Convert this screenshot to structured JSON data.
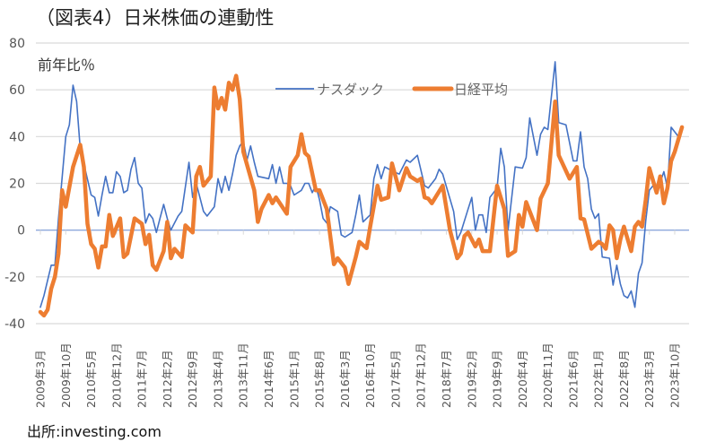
{
  "chart_data": {
    "type": "line",
    "title": "（図表4）日米株価の連動性",
    "ylabel": "前年比％",
    "source": "出所:investing.com",
    "ylim": [
      -40,
      80
    ],
    "yticks": [
      80,
      60,
      40,
      20,
      0,
      -20,
      -40
    ],
    "ytick_labels": [
      "80",
      "60",
      "40",
      "20",
      "0",
      "-20",
      "-40"
    ],
    "x_unit": "months since 2009年3月",
    "xlim": [
      0,
      177
    ],
    "x_tick_step_months": 7,
    "x_tick_labels": [
      "2009年3月",
      "2009年10月",
      "2010年5月",
      "2010年12月",
      "2011年7月",
      "2012年2月",
      "2012年9月",
      "2013年4月",
      "2013年11月",
      "2014年6月",
      "2015年1月",
      "2015年8月",
      "2016年3月",
      "2016年10月",
      "2017年5月",
      "2017年12月",
      "2018年7月",
      "2019年2月",
      "2019年9月",
      "2020年4月",
      "2020年11月",
      "2021年6月",
      "2022年1月",
      "2022年8月",
      "2023年3月",
      "2023年10月"
    ],
    "grid": true,
    "legend_position": "top-center",
    "colors": {
      "nasdaq": "#4472C4",
      "nikkei": "#ED7D31",
      "grid": "#D9D9D9",
      "axis": "#8EA9DB"
    },
    "series": [
      {
        "name": "ナスダック",
        "key": "nasdaq",
        "points": [
          [
            0,
            -33
          ],
          [
            1,
            -28
          ],
          [
            3,
            -15
          ],
          [
            4,
            -15
          ],
          [
            5,
            5
          ],
          [
            7,
            40
          ],
          [
            8,
            45
          ],
          [
            9,
            62
          ],
          [
            10,
            55
          ],
          [
            11,
            35
          ],
          [
            14,
            15
          ],
          [
            15,
            14
          ],
          [
            16,
            6
          ],
          [
            17,
            15
          ],
          [
            18,
            23
          ],
          [
            19,
            16
          ],
          [
            20,
            16
          ],
          [
            21,
            25
          ],
          [
            22,
            23
          ],
          [
            23,
            16
          ],
          [
            24,
            17
          ],
          [
            25,
            26
          ],
          [
            26,
            31
          ],
          [
            27,
            20
          ],
          [
            28,
            18
          ],
          [
            29,
            3
          ],
          [
            30,
            7
          ],
          [
            31,
            5
          ],
          [
            32,
            -1
          ],
          [
            33,
            5
          ],
          [
            34,
            11
          ],
          [
            35,
            5
          ],
          [
            36,
            0
          ],
          [
            38,
            6
          ],
          [
            39,
            8
          ],
          [
            41,
            29
          ],
          [
            42,
            14
          ],
          [
            43,
            20
          ],
          [
            44,
            14
          ],
          [
            45,
            8
          ],
          [
            46,
            6
          ],
          [
            48,
            10
          ],
          [
            49,
            22
          ],
          [
            50,
            16
          ],
          [
            51,
            23
          ],
          [
            52,
            17
          ],
          [
            53,
            24
          ],
          [
            54,
            32
          ],
          [
            55,
            36
          ],
          [
            56,
            38
          ],
          [
            57,
            30
          ],
          [
            58,
            36
          ],
          [
            59,
            29
          ],
          [
            60,
            23
          ],
          [
            63,
            22
          ],
          [
            64,
            28
          ],
          [
            65,
            20
          ],
          [
            66,
            27
          ],
          [
            67,
            20
          ],
          [
            68,
            20
          ],
          [
            69,
            19
          ],
          [
            70,
            15
          ],
          [
            72,
            17
          ],
          [
            73,
            20
          ],
          [
            74,
            20
          ],
          [
            75,
            16
          ],
          [
            76,
            19
          ],
          [
            77,
            13
          ],
          [
            78,
            5
          ],
          [
            79,
            3
          ],
          [
            80,
            10
          ],
          [
            82,
            8
          ],
          [
            83,
            -2
          ],
          [
            84,
            -3
          ],
          [
            86,
            -1
          ],
          [
            87,
            6.5
          ],
          [
            88,
            15
          ],
          [
            89,
            3.5
          ],
          [
            91,
            6.5
          ],
          [
            92,
            22
          ],
          [
            93,
            28
          ],
          [
            94,
            22
          ],
          [
            95,
            27
          ],
          [
            98,
            24.6
          ],
          [
            99,
            24
          ],
          [
            101,
            30
          ],
          [
            102,
            29
          ],
          [
            104,
            32
          ],
          [
            106,
            19
          ],
          [
            107,
            18
          ],
          [
            109,
            22
          ],
          [
            110,
            26
          ],
          [
            111,
            24
          ],
          [
            114,
            8
          ],
          [
            115,
            -4
          ],
          [
            116,
            -1
          ],
          [
            118,
            9
          ],
          [
            119,
            14
          ],
          [
            120,
            0
          ],
          [
            121,
            6.5
          ],
          [
            122,
            6.5
          ],
          [
            123,
            -1
          ],
          [
            124,
            14
          ],
          [
            126,
            18
          ],
          [
            127,
            35
          ],
          [
            128,
            27
          ],
          [
            129,
            0
          ],
          [
            131,
            27
          ],
          [
            133,
            26.5
          ],
          [
            134,
            31
          ],
          [
            135,
            48
          ],
          [
            137,
            32
          ],
          [
            138,
            41
          ],
          [
            139,
            44
          ],
          [
            140,
            43
          ],
          [
            142,
            72
          ],
          [
            143,
            46
          ],
          [
            145,
            45
          ],
          [
            147,
            29.6
          ],
          [
            148,
            29.6
          ],
          [
            149,
            42
          ],
          [
            150,
            27
          ],
          [
            151,
            22
          ],
          [
            152,
            9
          ],
          [
            153,
            5
          ],
          [
            154,
            7
          ],
          [
            155,
            -11.5
          ],
          [
            157,
            -12
          ],
          [
            158,
            -23.5
          ],
          [
            159,
            -15
          ],
          [
            160,
            -23
          ],
          [
            161,
            -28
          ],
          [
            162,
            -29
          ],
          [
            163,
            -26
          ],
          [
            164,
            -33
          ],
          [
            165,
            -18.5
          ],
          [
            166,
            -14
          ],
          [
            167,
            4
          ],
          [
            168,
            17
          ],
          [
            169,
            19
          ],
          [
            170,
            16
          ],
          [
            172,
            25
          ],
          [
            173,
            18
          ],
          [
            174,
            44
          ],
          [
            176,
            40
          ]
        ]
      },
      {
        "name": "日経平均",
        "key": "nikkei",
        "points": [
          [
            0,
            -35
          ],
          [
            1,
            -36.5
          ],
          [
            2,
            -34
          ],
          [
            3,
            -25
          ],
          [
            4,
            -20
          ],
          [
            5,
            -10
          ],
          [
            6,
            17
          ],
          [
            7,
            10
          ],
          [
            9,
            27
          ],
          [
            11,
            36.5
          ],
          [
            12,
            27
          ],
          [
            13,
            2.7
          ],
          [
            14,
            -6
          ],
          [
            15,
            -8
          ],
          [
            16,
            -16
          ],
          [
            17,
            -7
          ],
          [
            18,
            -7
          ],
          [
            19,
            6.5
          ],
          [
            20,
            -2.5
          ],
          [
            22,
            5
          ],
          [
            23,
            -11.5
          ],
          [
            24,
            -10
          ],
          [
            26,
            5
          ],
          [
            28,
            2.7
          ],
          [
            29,
            -6
          ],
          [
            30,
            -2
          ],
          [
            31,
            -15
          ],
          [
            32,
            -17
          ],
          [
            34,
            -9
          ],
          [
            35,
            3.5
          ],
          [
            36,
            -12
          ],
          [
            37,
            -8
          ],
          [
            39,
            -11.5
          ],
          [
            40,
            2
          ],
          [
            42,
            -1
          ],
          [
            43,
            23
          ],
          [
            44,
            27
          ],
          [
            45,
            19
          ],
          [
            47,
            23
          ],
          [
            48,
            61
          ],
          [
            49,
            52
          ],
          [
            50,
            56.5
          ],
          [
            51,
            51.5
          ],
          [
            52,
            63
          ],
          [
            53,
            60
          ],
          [
            54,
            66
          ],
          [
            55,
            56
          ],
          [
            56,
            33.5
          ],
          [
            59,
            17
          ],
          [
            60,
            3.5
          ],
          [
            61,
            9
          ],
          [
            63,
            15
          ],
          [
            64,
            11.5
          ],
          [
            65,
            14
          ],
          [
            68,
            7
          ],
          [
            69,
            27
          ],
          [
            71,
            32
          ],
          [
            72,
            41
          ],
          [
            73,
            33
          ],
          [
            74,
            31.5
          ],
          [
            76,
            17
          ],
          [
            77,
            17
          ],
          [
            79,
            9
          ],
          [
            81,
            -14.6
          ],
          [
            82,
            -12
          ],
          [
            84,
            -16
          ],
          [
            85,
            -23
          ],
          [
            87,
            -11.5
          ],
          [
            88,
            -5
          ],
          [
            90,
            -7.7
          ],
          [
            91,
            1.5
          ],
          [
            93,
            19
          ],
          [
            94,
            13
          ],
          [
            96,
            14
          ],
          [
            97,
            28.5
          ],
          [
            99,
            17
          ],
          [
            101,
            26.5
          ],
          [
            102,
            23
          ],
          [
            104,
            21
          ],
          [
            105,
            22
          ],
          [
            106,
            14
          ],
          [
            107,
            13.5
          ],
          [
            108,
            11.5
          ],
          [
            111,
            19
          ],
          [
            113,
            0
          ],
          [
            115,
            -12
          ],
          [
            116,
            -10
          ],
          [
            117,
            -2.5
          ],
          [
            118,
            -1
          ],
          [
            120,
            -7
          ],
          [
            121,
            -4
          ],
          [
            122,
            -9
          ],
          [
            124,
            -9
          ],
          [
            125,
            5
          ],
          [
            126,
            19
          ],
          [
            128,
            9
          ],
          [
            129,
            -11
          ],
          [
            131,
            -9
          ],
          [
            132,
            6.5
          ],
          [
            133,
            1.5
          ],
          [
            134,
            12
          ],
          [
            137,
            0
          ],
          [
            138,
            13.5
          ],
          [
            140,
            20
          ],
          [
            142,
            55
          ],
          [
            143,
            32
          ],
          [
            146,
            22
          ],
          [
            148,
            27
          ],
          [
            149,
            5
          ],
          [
            150,
            4.6
          ],
          [
            152,
            -8
          ],
          [
            154,
            -5
          ],
          [
            155,
            -6
          ],
          [
            156,
            -8
          ],
          [
            157,
            2
          ],
          [
            158,
            0
          ],
          [
            159,
            -12
          ],
          [
            160,
            -4
          ],
          [
            161,
            1.5
          ],
          [
            163,
            -9
          ],
          [
            164,
            1.5
          ],
          [
            165,
            3.5
          ],
          [
            166,
            1.5
          ],
          [
            167,
            13
          ],
          [
            168,
            26.5
          ],
          [
            170,
            16
          ],
          [
            171,
            23
          ],
          [
            172,
            11.5
          ],
          [
            173,
            18
          ],
          [
            174,
            29.6
          ],
          [
            175,
            33.5
          ],
          [
            177,
            44
          ]
        ]
      }
    ]
  }
}
